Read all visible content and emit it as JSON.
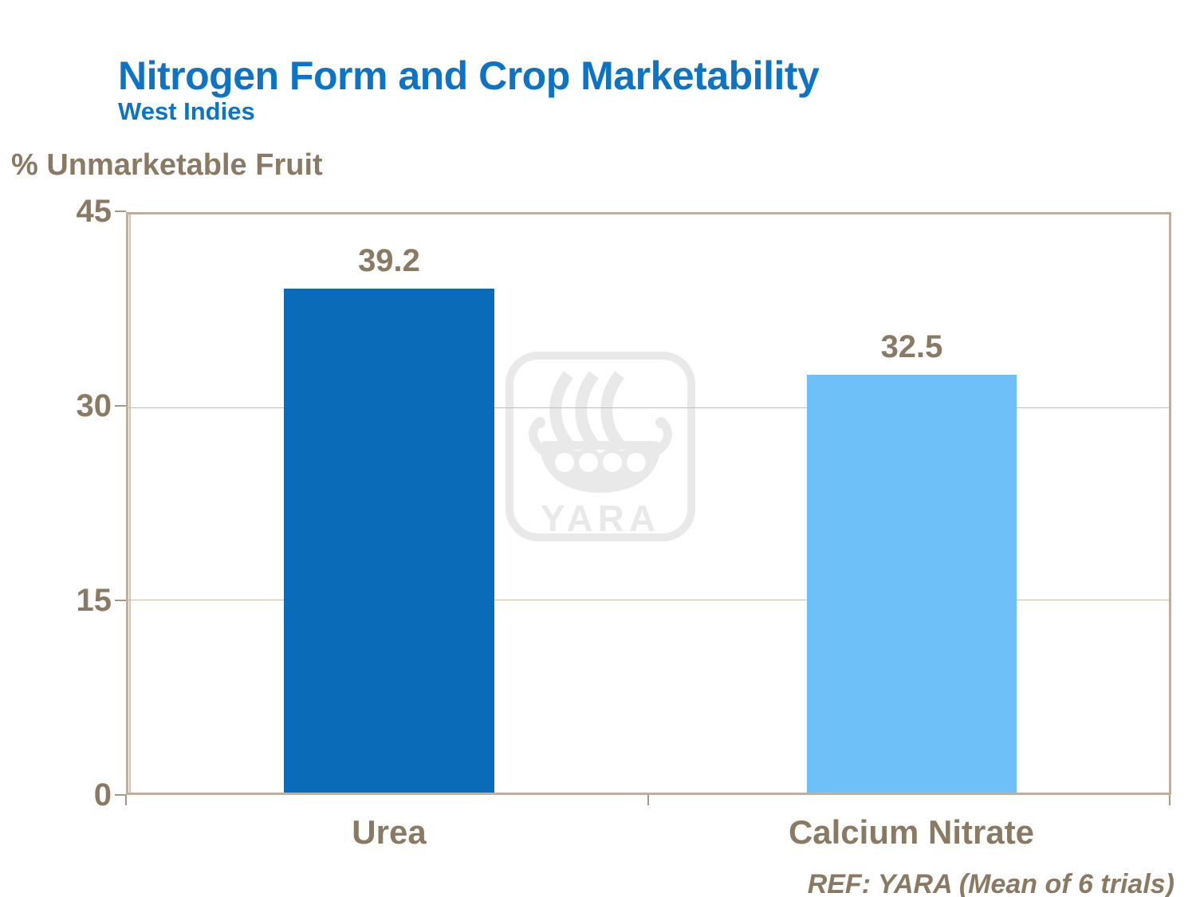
{
  "slide": {
    "title": "Nitrogen Form and Crop Marketability",
    "subtitle": "West Indies",
    "y_axis_title": "% Unmarketable Fruit",
    "reference": "REF: YARA (Mean of 6 trials)",
    "watermark": {
      "name": "yara-viking-ship-logo",
      "text": "YARA"
    }
  },
  "colors": {
    "title_blue": "#0d74c5",
    "bar_urea": "#0a6cb8",
    "bar_calcium_nitrate": "#6dc0f8",
    "axis_text_tan": "#8a7a63",
    "plot_border_tan": "#bcafa0",
    "gridline_tan": "#c8bdab",
    "watermark_gray": "#e9e9e9"
  },
  "chart_data": {
    "type": "bar",
    "title": "Nitrogen Form and Crop Marketability",
    "subtitle": "West Indies",
    "categories": [
      "Urea",
      "Calcium Nitrate"
    ],
    "values": [
      39.2,
      32.5
    ],
    "value_labels": [
      "39.2",
      "32.5"
    ],
    "bar_colors": [
      "#0a6cb8",
      "#6dc0f8"
    ],
    "xlabel": "",
    "ylabel": "% Unmarketable Fruit",
    "ylim": [
      0,
      45
    ],
    "yticks": [
      45,
      30,
      15,
      0
    ],
    "ytick_labels": [
      "45",
      "30",
      "15",
      "0"
    ],
    "grid": "horizontal gridlines at 15 and 30",
    "legend": "none",
    "annotation": "REF: YARA (Mean of 6 trials)"
  }
}
